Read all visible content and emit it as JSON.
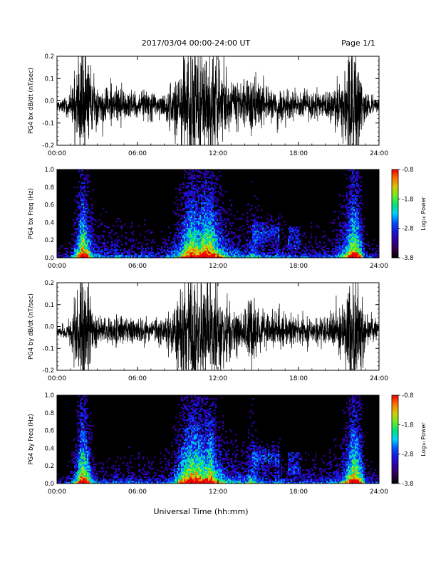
{
  "header": {
    "title": "2017/03/04  00:00-24:00 UT",
    "page": "Page 1/1"
  },
  "xlabel": "Universal Time (hh:mm)",
  "chart_data": [
    {
      "type": "line",
      "ylabel": "PG4 bx dB/dt (nT/sec)",
      "xlim": [
        0,
        24
      ],
      "ylim": [
        -0.2,
        0.2
      ],
      "xticks": [
        "00:00",
        "06:00",
        "12:00",
        "18:00",
        "24:00"
      ],
      "yticks": [
        "-0.2",
        "-0.1",
        "0.0",
        "0.1",
        "0.2"
      ],
      "envelope": {
        "hours": [
          0,
          0.5,
          1,
          1.5,
          1.8,
          2,
          2.3,
          2.6,
          3,
          3.5,
          4,
          4.5,
          5,
          5.5,
          6,
          6.5,
          7,
          7.5,
          8,
          8.5,
          9,
          9.5,
          10,
          10.5,
          11,
          11.5,
          12,
          12.5,
          13,
          13.5,
          14,
          14.5,
          15,
          15.5,
          16,
          16.5,
          17,
          17.5,
          18,
          18.5,
          19,
          19.5,
          20,
          20.5,
          21,
          21.5,
          22,
          22.3,
          22.6,
          23,
          23.5,
          24
        ],
        "amplitude": [
          0.02,
          0.03,
          0.05,
          0.15,
          0.25,
          0.25,
          0.2,
          0.12,
          0.08,
          0.08,
          0.07,
          0.09,
          0.06,
          0.06,
          0.05,
          0.07,
          0.06,
          0.05,
          0.06,
          0.08,
          0.12,
          0.2,
          0.25,
          0.22,
          0.25,
          0.25,
          0.18,
          0.12,
          0.1,
          0.09,
          0.08,
          0.12,
          0.09,
          0.07,
          0.06,
          0.08,
          0.06,
          0.06,
          0.05,
          0.06,
          0.06,
          0.05,
          0.06,
          0.07,
          0.1,
          0.15,
          0.25,
          0.25,
          0.18,
          0.06,
          0.04,
          0.03
        ]
      }
    },
    {
      "type": "heatmap",
      "ylabel": "PG4 bx Freq (Hz)",
      "xlim": [
        0,
        24
      ],
      "ylim": [
        0,
        1.0
      ],
      "xticks": [
        "00:00",
        "06:00",
        "12:00",
        "18:00",
        "24:00"
      ],
      "yticks": [
        "0.0",
        "0.2",
        "0.4",
        "0.6",
        "0.8",
        "1.0"
      ],
      "colorbar": {
        "label": "Log₁₀ Power",
        "range": [
          -3.8,
          -0.8
        ],
        "ticks": [
          "-0.8",
          "-1.8",
          "-2.8",
          "-3.8"
        ]
      }
    },
    {
      "type": "line",
      "ylabel": "PG4 by dB/dt (nT/sec)",
      "xlim": [
        0,
        24
      ],
      "ylim": [
        -0.2,
        0.2
      ],
      "xticks": [
        "00:00",
        "06:00",
        "12:00",
        "18:00",
        "24:00"
      ],
      "yticks": [
        "-0.2",
        "-0.1",
        "0.0",
        "0.1",
        "0.2"
      ],
      "envelope": {
        "hours": [
          0,
          0.5,
          1,
          1.5,
          1.8,
          2,
          2.3,
          2.6,
          3,
          3.5,
          4,
          4.5,
          5,
          5.5,
          6,
          6.5,
          7,
          7.5,
          8,
          8.5,
          9,
          9.5,
          10,
          10.5,
          11,
          11.5,
          12,
          12.5,
          13,
          13.5,
          14,
          14.5,
          15,
          15.5,
          16,
          16.5,
          17,
          17.5,
          18,
          18.5,
          19,
          19.5,
          20,
          20.5,
          21,
          21.5,
          22,
          22.3,
          22.6,
          23,
          23.5,
          24
        ],
        "amplitude": [
          0.02,
          0.03,
          0.05,
          0.15,
          0.25,
          0.25,
          0.2,
          0.1,
          0.06,
          0.06,
          0.05,
          0.07,
          0.05,
          0.06,
          0.05,
          0.06,
          0.05,
          0.05,
          0.06,
          0.08,
          0.15,
          0.22,
          0.25,
          0.25,
          0.22,
          0.25,
          0.15,
          0.12,
          0.1,
          0.09,
          0.08,
          0.14,
          0.09,
          0.07,
          0.06,
          0.08,
          0.06,
          0.06,
          0.05,
          0.06,
          0.06,
          0.05,
          0.06,
          0.07,
          0.09,
          0.14,
          0.25,
          0.25,
          0.2,
          0.06,
          0.05,
          0.04
        ]
      }
    },
    {
      "type": "heatmap",
      "ylabel": "PG4 by Freq (Hz)",
      "xlim": [
        0,
        24
      ],
      "ylim": [
        0,
        1.0
      ],
      "xticks": [
        "00:00",
        "06:00",
        "12:00",
        "18:00",
        "24:00"
      ],
      "yticks": [
        "0.0",
        "0.2",
        "0.4",
        "0.6",
        "0.8",
        "1.0"
      ],
      "colorbar": {
        "label": "Log₁₀ Power",
        "range": [
          -3.8,
          -0.8
        ],
        "ticks": [
          "-0.8",
          "-1.8",
          "-2.8",
          "-3.8"
        ]
      }
    }
  ]
}
